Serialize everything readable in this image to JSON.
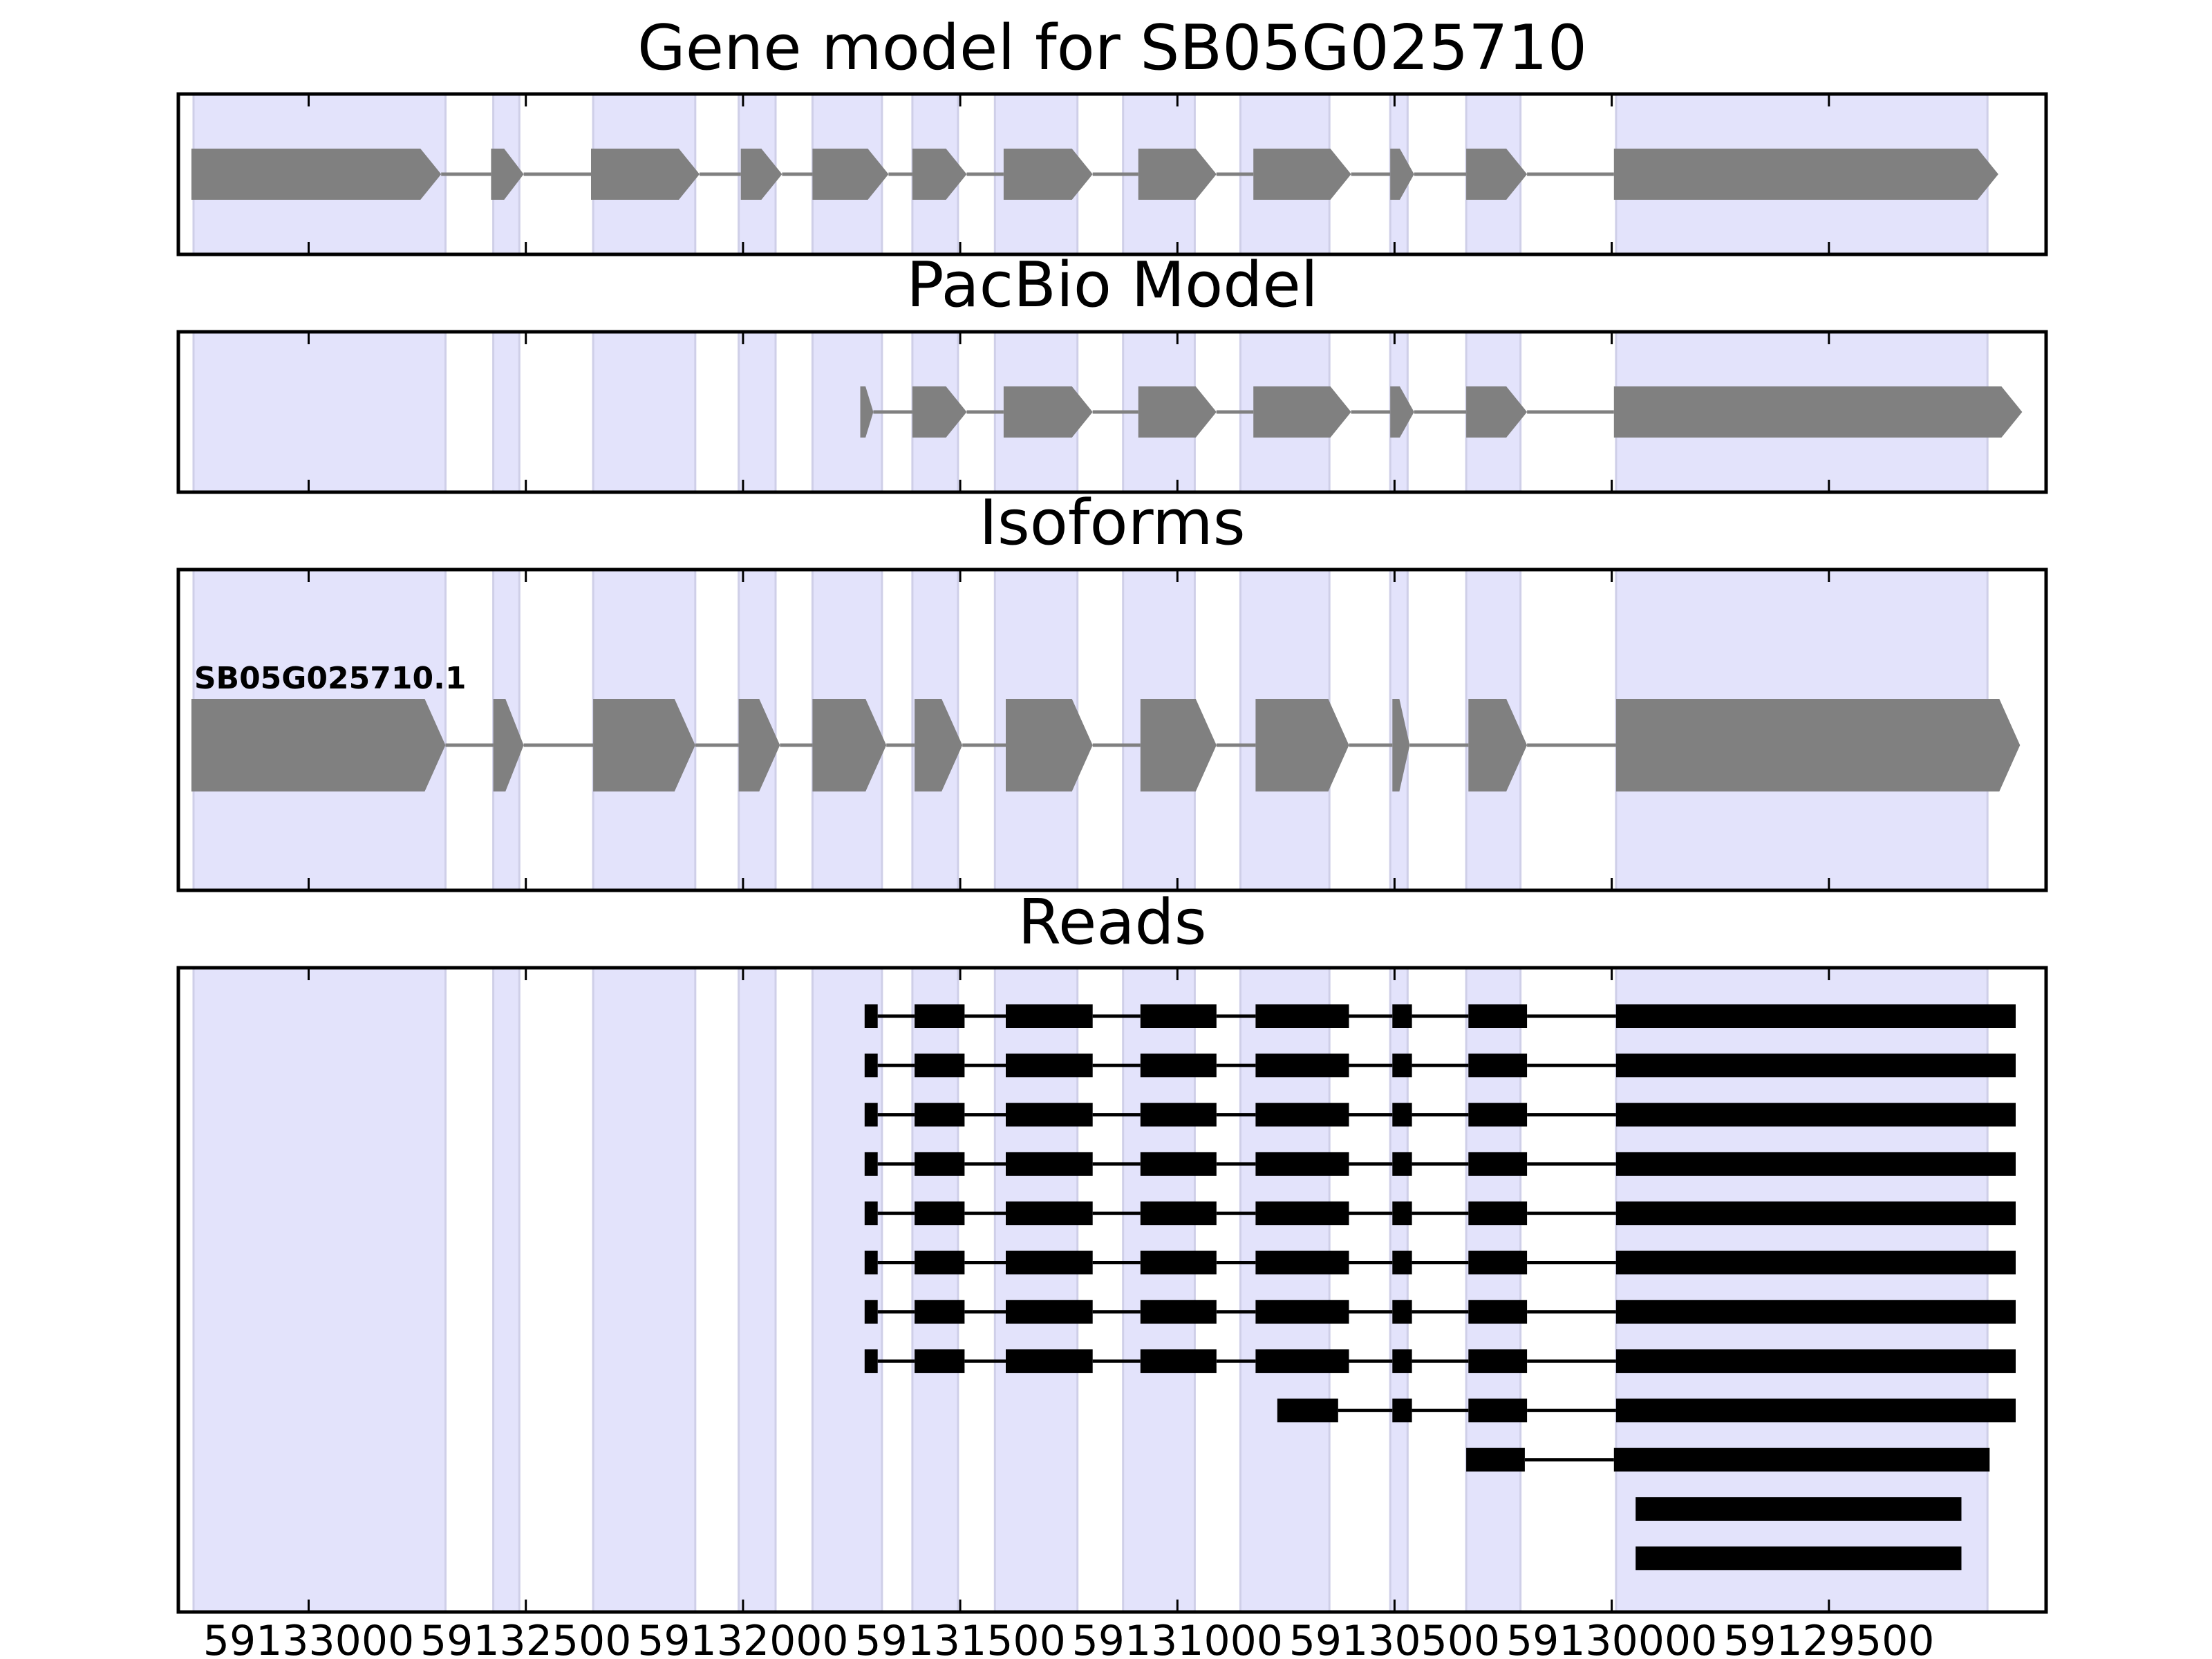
{
  "chart_data": {
    "type": "gene-structure",
    "x_axis": {
      "reversed": true,
      "xlim": [
        59133300,
        59129000
      ],
      "ticks": [
        59133000,
        59132500,
        59132000,
        59131500,
        59131000,
        59130500,
        59130000,
        59129500
      ],
      "tick_labels": [
        "59133000",
        "59132500",
        "59132000",
        "59131500",
        "59131000",
        "59130500",
        "59130000",
        "59129500"
      ]
    },
    "shaded_exons": [
      [
        59133265,
        59132685
      ],
      [
        59132575,
        59132515
      ],
      [
        59132345,
        59132110
      ],
      [
        59132010,
        59131925
      ],
      [
        59131840,
        59131680
      ],
      [
        59131610,
        59131505
      ],
      [
        59131420,
        59131230
      ],
      [
        59131125,
        59130960
      ],
      [
        59130855,
        59130650
      ],
      [
        59130510,
        59130470
      ],
      [
        59130335,
        59130210
      ],
      [
        59129990,
        59129135
      ]
    ],
    "panels": [
      {
        "title": "Gene model for SB05G025710",
        "kind": "model",
        "exons": [
          [
            59133270,
            59132695
          ],
          [
            59132580,
            59132505
          ],
          [
            59132350,
            59132100
          ],
          [
            59132005,
            59131910
          ],
          [
            59131840,
            59131665
          ],
          [
            59131610,
            59131485
          ],
          [
            59131400,
            59131195
          ],
          [
            59131090,
            59130910
          ],
          [
            59130825,
            59130600
          ],
          [
            59130510,
            59130455
          ],
          [
            59130335,
            59130195
          ],
          [
            59129995,
            59129110
          ]
        ]
      },
      {
        "title": "PacBio Model",
        "kind": "model",
        "exons": [
          [
            59131730,
            59131700
          ],
          [
            59131610,
            59131485
          ],
          [
            59131400,
            59131195
          ],
          [
            59131090,
            59130910
          ],
          [
            59130825,
            59130600
          ],
          [
            59130510,
            59130455
          ],
          [
            59130335,
            59130195
          ],
          [
            59129995,
            59129055
          ]
        ]
      },
      {
        "title": "Isoforms",
        "kind": "isoforms",
        "isoforms": [
          {
            "name": "SB05G025710.1",
            "exons": [
              [
                59133270,
                59132685
              ],
              [
                59132575,
                59132505
              ],
              [
                59132345,
                59132110
              ],
              [
                59132010,
                59131915
              ],
              [
                59131840,
                59131670
              ],
              [
                59131605,
                59131495
              ],
              [
                59131395,
                59131195
              ],
              [
                59131085,
                59130910
              ],
              [
                59130820,
                59130605
              ],
              [
                59130505,
                59130465
              ],
              [
                59130330,
                59130195
              ],
              [
                59129990,
                59129060
              ]
            ]
          }
        ]
      },
      {
        "title": "Reads",
        "kind": "reads",
        "reads": [
          [
            [
              59131720,
              59131690
            ],
            [
              59131605,
              59131490
            ],
            [
              59131395,
              59131195
            ],
            [
              59131085,
              59130910
            ],
            [
              59130820,
              59130605
            ],
            [
              59130505,
              59130460
            ],
            [
              59130330,
              59130195
            ],
            [
              59129990,
              59129070
            ]
          ],
          [
            [
              59131720,
              59131690
            ],
            [
              59131605,
              59131490
            ],
            [
              59131395,
              59131195
            ],
            [
              59131085,
              59130910
            ],
            [
              59130820,
              59130605
            ],
            [
              59130505,
              59130460
            ],
            [
              59130330,
              59130195
            ],
            [
              59129990,
              59129070
            ]
          ],
          [
            [
              59131720,
              59131690
            ],
            [
              59131605,
              59131490
            ],
            [
              59131395,
              59131195
            ],
            [
              59131085,
              59130910
            ],
            [
              59130820,
              59130605
            ],
            [
              59130505,
              59130460
            ],
            [
              59130330,
              59130195
            ],
            [
              59129990,
              59129070
            ]
          ],
          [
            [
              59131720,
              59131690
            ],
            [
              59131605,
              59131490
            ],
            [
              59131395,
              59131195
            ],
            [
              59131085,
              59130910
            ],
            [
              59130820,
              59130605
            ],
            [
              59130505,
              59130460
            ],
            [
              59130330,
              59130195
            ],
            [
              59129990,
              59129070
            ]
          ],
          [
            [
              59131720,
              59131690
            ],
            [
              59131605,
              59131490
            ],
            [
              59131395,
              59131195
            ],
            [
              59131085,
              59130910
            ],
            [
              59130820,
              59130605
            ],
            [
              59130505,
              59130460
            ],
            [
              59130330,
              59130195
            ],
            [
              59129990,
              59129070
            ]
          ],
          [
            [
              59131720,
              59131690
            ],
            [
              59131605,
              59131490
            ],
            [
              59131395,
              59131195
            ],
            [
              59131085,
              59130910
            ],
            [
              59130820,
              59130605
            ],
            [
              59130505,
              59130460
            ],
            [
              59130330,
              59130195
            ],
            [
              59129990,
              59129070
            ]
          ],
          [
            [
              59131720,
              59131690
            ],
            [
              59131605,
              59131490
            ],
            [
              59131395,
              59131195
            ],
            [
              59131085,
              59130910
            ],
            [
              59130820,
              59130605
            ],
            [
              59130505,
              59130460
            ],
            [
              59130330,
              59130195
            ],
            [
              59129990,
              59129070
            ]
          ],
          [
            [
              59131720,
              59131690
            ],
            [
              59131605,
              59131490
            ],
            [
              59131395,
              59131195
            ],
            [
              59131085,
              59130910
            ],
            [
              59130820,
              59130605
            ],
            [
              59130505,
              59130460
            ],
            [
              59130330,
              59130195
            ],
            [
              59129990,
              59129070
            ]
          ],
          [
            [
              59130770,
              59130630
            ],
            [
              59130505,
              59130460
            ],
            [
              59130330,
              59130195
            ],
            [
              59129990,
              59129070
            ]
          ],
          [
            [
              59130335,
              59130200
            ],
            [
              59129995,
              59129130
            ]
          ],
          [
            [
              59129945,
              59129195
            ]
          ],
          [
            [
              59129945,
              59129195
            ]
          ]
        ]
      }
    ],
    "colors": {
      "exon_shade": "#e3e3fb",
      "exon_shade_edge": "#cfcfe8",
      "model_exon": "#808080",
      "intron_line": "#808080",
      "read": "#000000",
      "axes": "#000000"
    }
  }
}
